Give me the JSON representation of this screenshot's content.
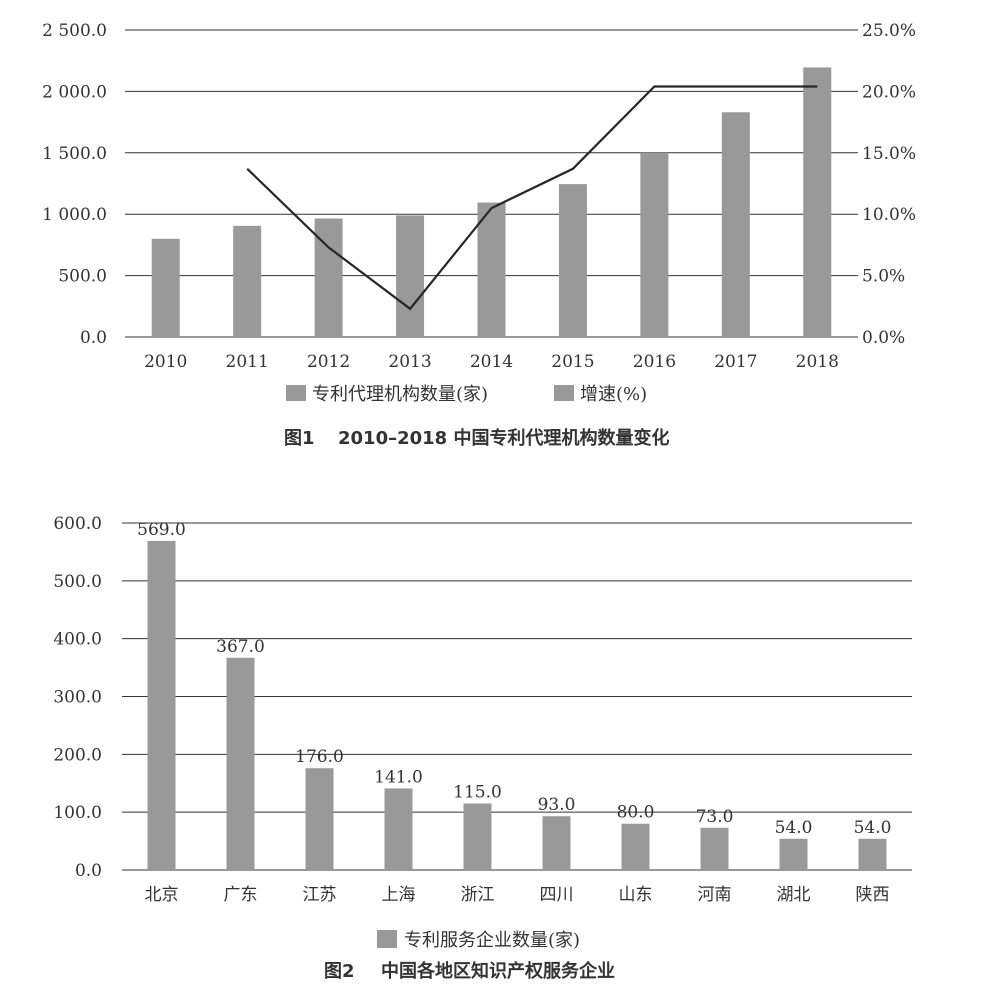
{
  "chart_data": [
    {
      "type": "bar",
      "title": "",
      "caption_number": "图1",
      "caption_text": "2010–2018 中国专利代理机构数量变化",
      "categories": [
        "2010",
        "2011",
        "2012",
        "2013",
        "2014",
        "2015",
        "2016",
        "2017",
        "2018"
      ],
      "ylim": [
        0,
        2500
      ],
      "y_ticks": [
        "0.0",
        "500.0",
        "1 000.0",
        "1 500.0",
        "2 000.0",
        "2 500.0"
      ],
      "y2lim": [
        0,
        25
      ],
      "y2_ticks": [
        "0.0%",
        "5.0%",
        "10.0%",
        "15.0%",
        "20.0%",
        "25.0%"
      ],
      "grid": true,
      "legend_position": "bottom",
      "series": [
        {
          "name": "专利代理机构数量(家)",
          "type": "bar",
          "axis": "left",
          "values": [
            800,
            905,
            965,
            990,
            1095,
            1245,
            1500,
            1830,
            2195
          ]
        },
        {
          "name": "增速(%)",
          "type": "line",
          "axis": "right",
          "values": [
            null,
            13.7,
            7.3,
            2.3,
            10.5,
            13.7,
            20.4,
            20.4,
            20.4
          ]
        }
      ],
      "colors": {
        "bar": "#999999",
        "line": "#262626",
        "grid": "#333333"
      }
    },
    {
      "type": "bar",
      "title": "",
      "caption_number": "图2",
      "caption_text": "中国各地区知识产权服务企业",
      "categories": [
        "北京",
        "广东",
        "江苏",
        "上海",
        "浙江",
        "四川",
        "山东",
        "河南",
        "湖北",
        "陕西"
      ],
      "ylim": [
        0,
        600
      ],
      "y_ticks": [
        "0.0",
        "100.0",
        "200.0",
        "300.0",
        "400.0",
        "500.0",
        "600.0"
      ],
      "grid": true,
      "legend_position": "bottom",
      "series": [
        {
          "name": "专利服务企业数量(家)",
          "values": [
            569,
            367,
            176,
            141,
            115,
            93,
            80,
            73,
            54,
            54
          ],
          "labels": [
            "569.0",
            "367.0",
            "176.0",
            "141.0",
            "115.0",
            "93.0",
            "80.0",
            "73.0",
            "54.0",
            "54.0"
          ]
        }
      ],
      "colors": {
        "bar": "#999999",
        "grid": "#333333"
      }
    }
  ]
}
